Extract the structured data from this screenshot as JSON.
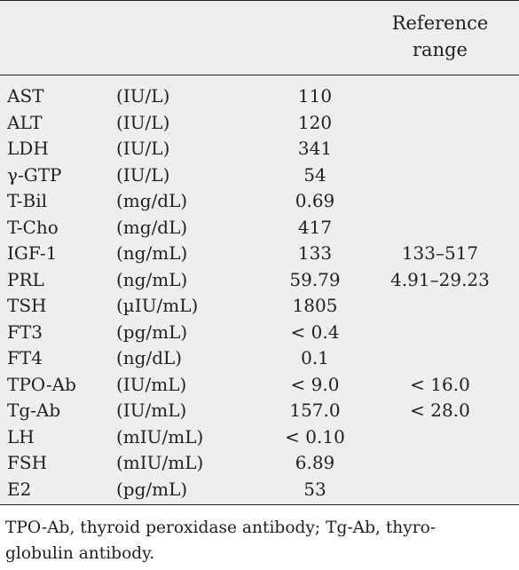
{
  "header": {
    "reference_range_line1": "Reference",
    "reference_range_line2": "range"
  },
  "rows": [
    {
      "name": "AST",
      "unit": "(IU/L)",
      "value": "110",
      "reference": ""
    },
    {
      "name": "ALT",
      "unit": "(IU/L)",
      "value": "120",
      "reference": ""
    },
    {
      "name": "LDH",
      "unit": "(IU/L)",
      "value": "341",
      "reference": ""
    },
    {
      "name": "γ-GTP",
      "unit": "(IU/L)",
      "value": "54",
      "reference": ""
    },
    {
      "name": "T-Bil",
      "unit": "(mg/dL)",
      "value": "0.69",
      "reference": ""
    },
    {
      "name": "T-Cho",
      "unit": "(mg/dL)",
      "value": "417",
      "reference": ""
    },
    {
      "name": "IGF-1",
      "unit": "(ng/mL)",
      "value": "133",
      "reference": "133–517"
    },
    {
      "name": "PRL",
      "unit": "(ng/mL)",
      "value": "59.79",
      "reference": "4.91–29.23"
    },
    {
      "name": "TSH",
      "unit": "(µIU/mL)",
      "value": "1805",
      "reference": ""
    },
    {
      "name": "FT3",
      "unit": "(pg/mL)",
      "value": "< 0.4",
      "reference": ""
    },
    {
      "name": "FT4",
      "unit": "(ng/dL)",
      "value": "0.1",
      "reference": ""
    },
    {
      "name": "TPO-Ab",
      "unit": "(IU/mL)",
      "value": "< 9.0",
      "reference": "< 16.0"
    },
    {
      "name": "Tg-Ab",
      "unit": "(IU/mL)",
      "value": "157.0",
      "reference": "< 28.0"
    },
    {
      "name": "LH",
      "unit": "(mIU/mL)",
      "value": "< 0.10",
      "reference": ""
    },
    {
      "name": "FSH",
      "unit": "(mIU/mL)",
      "value": "6.89",
      "reference": ""
    },
    {
      "name": "E2",
      "unit": "(pg/mL)",
      "value": "53",
      "reference": ""
    }
  ],
  "footnote": "TPO-Ab, thyroid peroxidase antibody; Tg-Ab, thyro-\nglobulin antibody."
}
